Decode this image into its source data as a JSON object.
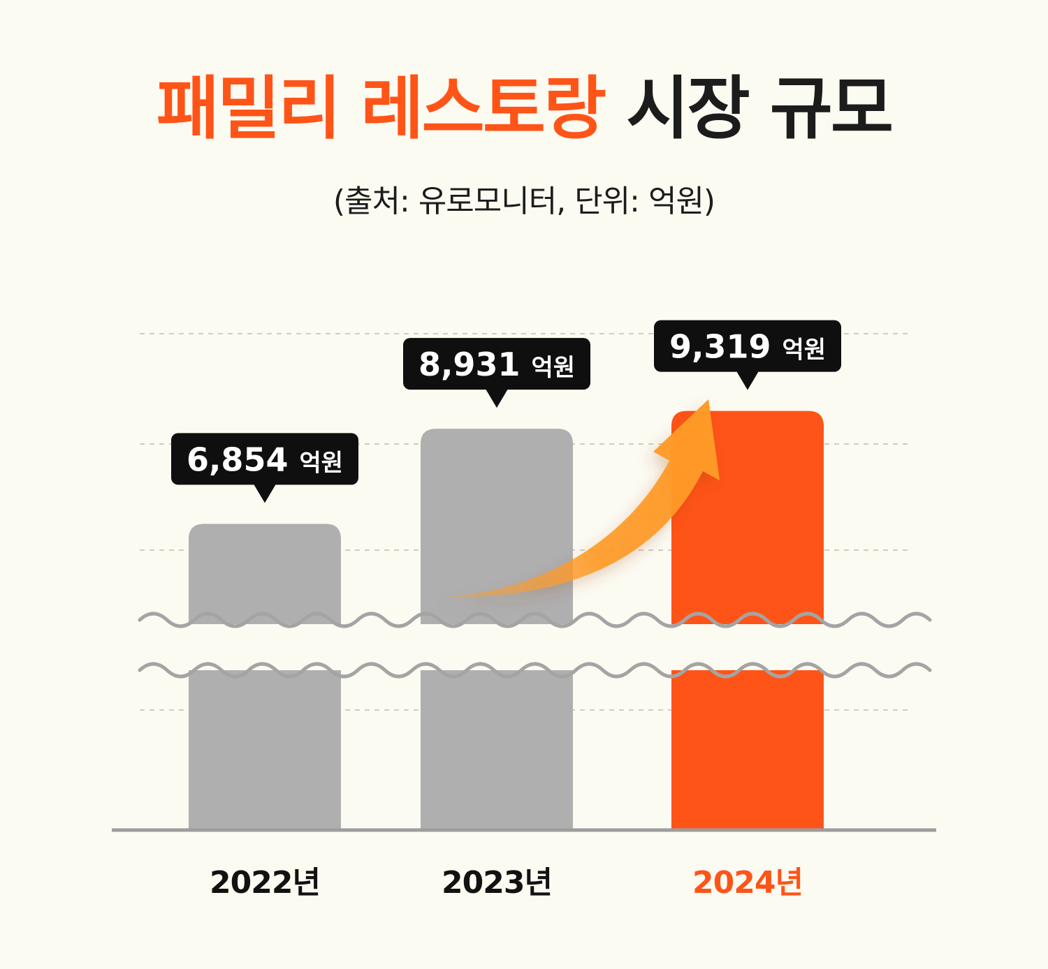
{
  "title": {
    "highlight": "패밀리 레스토랑",
    "rest": "시장 규모"
  },
  "subtitle": "(출처: 유로모니터, 단위: 억원)",
  "colors": {
    "accent": "#ff5418",
    "bar_default": "#afafaf",
    "arrow": "#ff9a26",
    "label_bg": "#0f0f0f",
    "axis": "#9d9d9d",
    "background": "#fcfbf2"
  },
  "chart_data": {
    "type": "bar",
    "categories": [
      "2022년",
      "2023년",
      "2024년"
    ],
    "values": [
      6854,
      8931,
      9319
    ],
    "value_labels": [
      {
        "number": "6,854",
        "unit": "억원"
      },
      {
        "number": "8,931",
        "unit": "억원"
      },
      {
        "number": "9,319",
        "unit": "억원"
      }
    ],
    "highlighted_index": 2,
    "axis_break": true,
    "grid": true,
    "growth_arrow": true
  }
}
